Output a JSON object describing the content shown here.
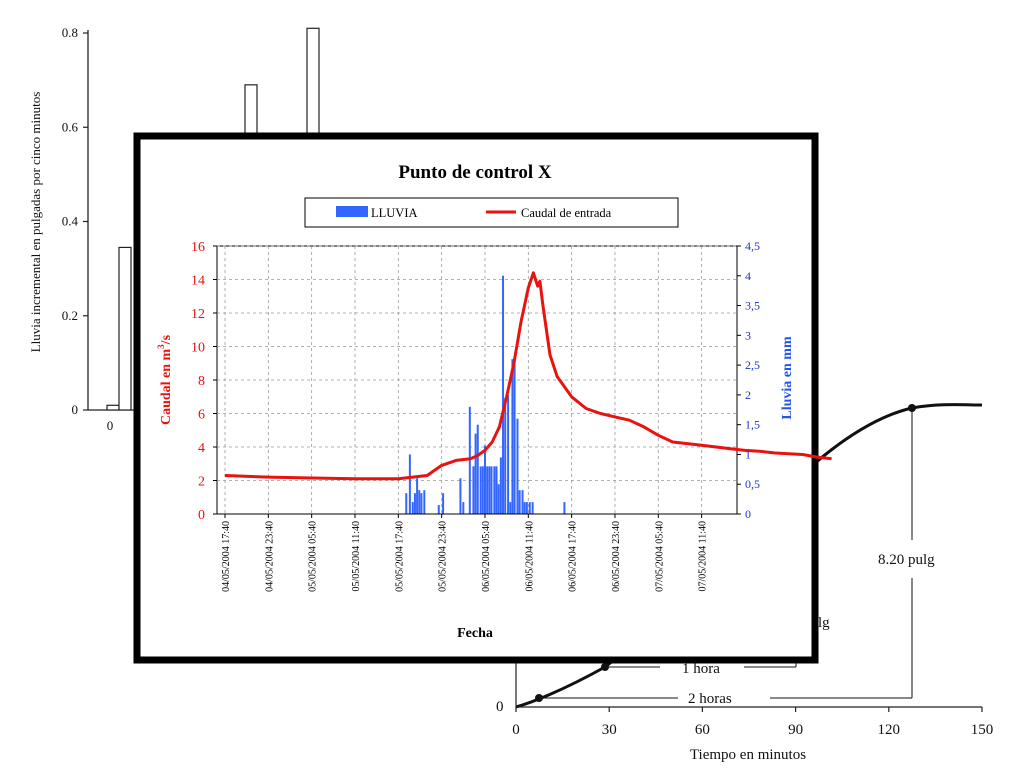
{
  "background_left": {
    "ylabel": "Lluvia incremental en pulgadas por cinco minutos",
    "yticks": [
      "0",
      "0.2",
      "0.4",
      "0.6",
      "0.8"
    ],
    "xtick": "0",
    "bars": [
      0.01,
      0.345,
      0.69,
      0.81
    ]
  },
  "background_right": {
    "xticks": [
      "0",
      "30",
      "60",
      "90",
      "120",
      "150"
    ],
    "ytick": "0",
    "xlabel": "Tiempo en minutos",
    "labels": {
      "total": "8.20 pulg",
      "partial": "lg",
      "one_hour": "1 hora",
      "two_hours": "2 horas"
    }
  },
  "chart_data": {
    "type": "line",
    "title": "Punto de control X",
    "xlabel": "Fecha",
    "ylabel": "Caudal en m³/s",
    "ylabel_parts": [
      "Caudal en m",
      "3",
      "/s"
    ],
    "y2label": "Lluvia en mm",
    "ylim": [
      0,
      16
    ],
    "y2lim": [
      0,
      4.5
    ],
    "yticks": [
      "0",
      "2",
      "4",
      "6",
      "8",
      "10",
      "12",
      "14",
      "16"
    ],
    "y2ticks": [
      "0",
      "0,5",
      "1",
      "1,5",
      "2",
      "2,5",
      "3",
      "3,5",
      "4",
      "4,5"
    ],
    "xticks": [
      "04/05/2004 17:40",
      "04/05/2004 23:40",
      "05/05/2004 05:40",
      "05/05/2004 11:40",
      "05/05/2004 17:40",
      "05/05/2004 23:40",
      "06/05/2004 05:40",
      "06/05/2004 11:40",
      "06/05/2004 17:40",
      "06/05/2004 23:40",
      "07/05/2004 05:40",
      "07/05/2004 11:40"
    ],
    "grid": true,
    "legend_position": "top",
    "x_unit": "hours after 04/05/2004 17:40",
    "series": [
      {
        "name": "LLUVIA",
        "type": "bar",
        "axis": "right",
        "color": "#3366ff",
        "x": [
          25.1,
          25.6,
          26.0,
          26.3,
          26.6,
          26.9,
          27.2,
          27.6,
          29.6,
          30.2,
          32.6,
          33.0,
          33.9,
          34.4,
          34.7,
          35.0,
          35.4,
          35.7,
          36.0,
          36.3,
          36.6,
          36.9,
          37.3,
          37.6,
          37.9,
          38.2,
          38.5,
          38.8,
          39.2,
          39.5,
          39.8,
          40.1,
          40.5,
          40.8,
          41.2,
          41.5,
          41.8,
          42.2,
          42.6,
          47.0
        ],
        "values": [
          0.35,
          1.0,
          0.2,
          0.35,
          0.6,
          0.4,
          0.35,
          0.4,
          0.15,
          0.35,
          0.6,
          0.2,
          1.8,
          0.8,
          1.35,
          1.5,
          0.8,
          0.8,
          1.15,
          0.8,
          0.8,
          0.8,
          0.8,
          0.8,
          0.5,
          0.95,
          4.0,
          1.95,
          2.0,
          0.2,
          2.6,
          2.65,
          1.6,
          0.4,
          0.4,
          0.2,
          0.2,
          0.2,
          0.2,
          0.2
        ]
      },
      {
        "name": "Caudal de entrada",
        "type": "line",
        "axis": "left",
        "color": "#e8130e",
        "x": [
          0,
          6,
          12,
          18,
          24,
          28,
          30,
          32,
          34,
          35,
          36,
          37,
          38,
          39,
          40,
          41,
          42,
          42.7,
          43,
          43.3,
          43.6,
          44,
          45,
          46,
          48,
          50,
          52,
          54,
          56,
          58,
          60,
          62,
          64,
          66,
          68,
          70,
          72,
          74,
          76,
          78,
          80,
          82,
          84
        ],
        "values": [
          2.3,
          2.2,
          2.15,
          2.1,
          2.1,
          2.3,
          2.9,
          3.2,
          3.3,
          3.5,
          3.8,
          4.3,
          5.2,
          7.0,
          9.0,
          11.5,
          13.5,
          14.4,
          14.0,
          13.6,
          13.9,
          12.5,
          9.5,
          8.2,
          7.0,
          6.3,
          6.0,
          5.8,
          5.6,
          5.2,
          4.7,
          4.3,
          4.2,
          4.1,
          4.0,
          3.9,
          3.8,
          3.75,
          3.65,
          3.6,
          3.55,
          3.4,
          3.3
        ]
      }
    ]
  }
}
